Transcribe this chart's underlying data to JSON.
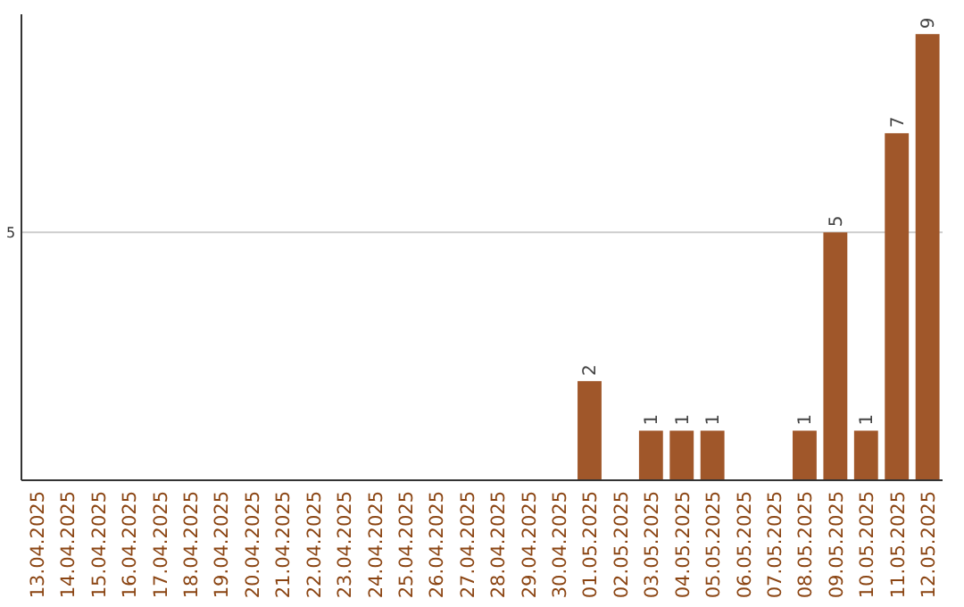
{
  "chart_data": {
    "type": "bar",
    "categories": [
      "13.04.2025",
      "14.04.2025",
      "15.04.2025",
      "16.04.2025",
      "17.04.2025",
      "18.04.2025",
      "19.04.2025",
      "20.04.2025",
      "21.04.2025",
      "22.04.2025",
      "23.04.2025",
      "24.04.2025",
      "25.04.2025",
      "26.04.2025",
      "27.04.2025",
      "28.04.2025",
      "29.04.2025",
      "30.04.2025",
      "01.05.2025",
      "02.05.2025",
      "03.05.2025",
      "04.05.2025",
      "05.05.2025",
      "06.05.2025",
      "07.05.2025",
      "08.05.2025",
      "09.05.2025",
      "10.05.2025",
      "11.05.2025",
      "12.05.2025"
    ],
    "values": [
      null,
      null,
      null,
      null,
      null,
      null,
      null,
      null,
      null,
      null,
      null,
      null,
      null,
      null,
      null,
      null,
      null,
      null,
      2,
      null,
      1,
      1,
      1,
      null,
      null,
      1,
      5,
      1,
      7,
      9
    ],
    "data_labels": true,
    "color": "#a0572a",
    "ylim": [
      0,
      9.4
    ],
    "ref_lines": [
      {
        "axis": "y",
        "value": 5,
        "label": "5",
        "color": "#cccccc"
      }
    ]
  }
}
